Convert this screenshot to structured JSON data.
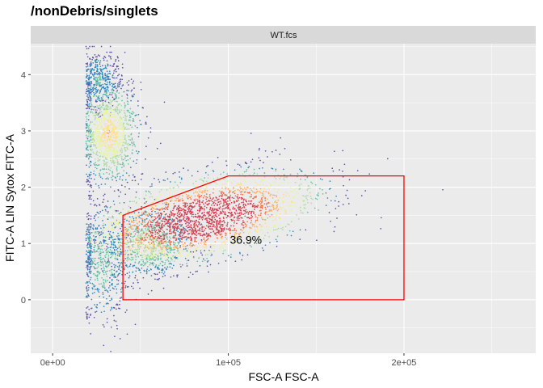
{
  "page_title": "/nonDebris/singlets",
  "chart_data": {
    "type": "scatter",
    "title": "/nonDebris/singlets",
    "facet_label": "WT.fcs",
    "xlabel": "FSC-A FSC-A",
    "ylabel": "FITC-A LIN Sytox FITC-A",
    "xlim": [
      -12500,
      275000
    ],
    "ylim": [
      -0.95,
      4.55
    ],
    "x_ticks": [
      0,
      100000,
      200000
    ],
    "x_tick_labels": [
      "0e+00",
      "1e+05",
      "2e+05"
    ],
    "y_ticks": [
      0,
      1,
      2,
      3,
      4
    ],
    "y_tick_labels": [
      "0",
      "1",
      "2",
      "3",
      "4"
    ],
    "grid": true,
    "density_colors": [
      "#5e4fa2",
      "#3288bd",
      "#66c2a5",
      "#abdda4",
      "#e6f598",
      "#fee08b",
      "#fdae61",
      "#f46d43",
      "#d53e4f"
    ],
    "clusters": [
      {
        "center": [
          32000,
          2.95
        ],
        "spread": [
          9000,
          0.45
        ],
        "weight": 0.22
      },
      {
        "center": [
          26000,
          3.9
        ],
        "spread": [
          6000,
          0.25
        ],
        "weight": 0.08
      },
      {
        "center": [
          85000,
          1.45
        ],
        "spread": [
          32000,
          0.35
        ],
        "weight": 0.45
      },
      {
        "center": [
          55000,
          1.0
        ],
        "spread": [
          12000,
          0.3
        ],
        "weight": 0.15
      },
      {
        "center": [
          28000,
          0.6
        ],
        "spread": [
          8000,
          0.5
        ],
        "weight": 0.1
      }
    ],
    "gate": {
      "color": "#ff0000",
      "polygon": [
        [
          40000,
          0
        ],
        [
          40000,
          1.5
        ],
        [
          100000,
          2.2
        ],
        [
          200000,
          2.2
        ],
        [
          200000,
          0
        ]
      ],
      "label": "36.9%",
      "label_position": [
        110000,
        1.07
      ]
    }
  }
}
